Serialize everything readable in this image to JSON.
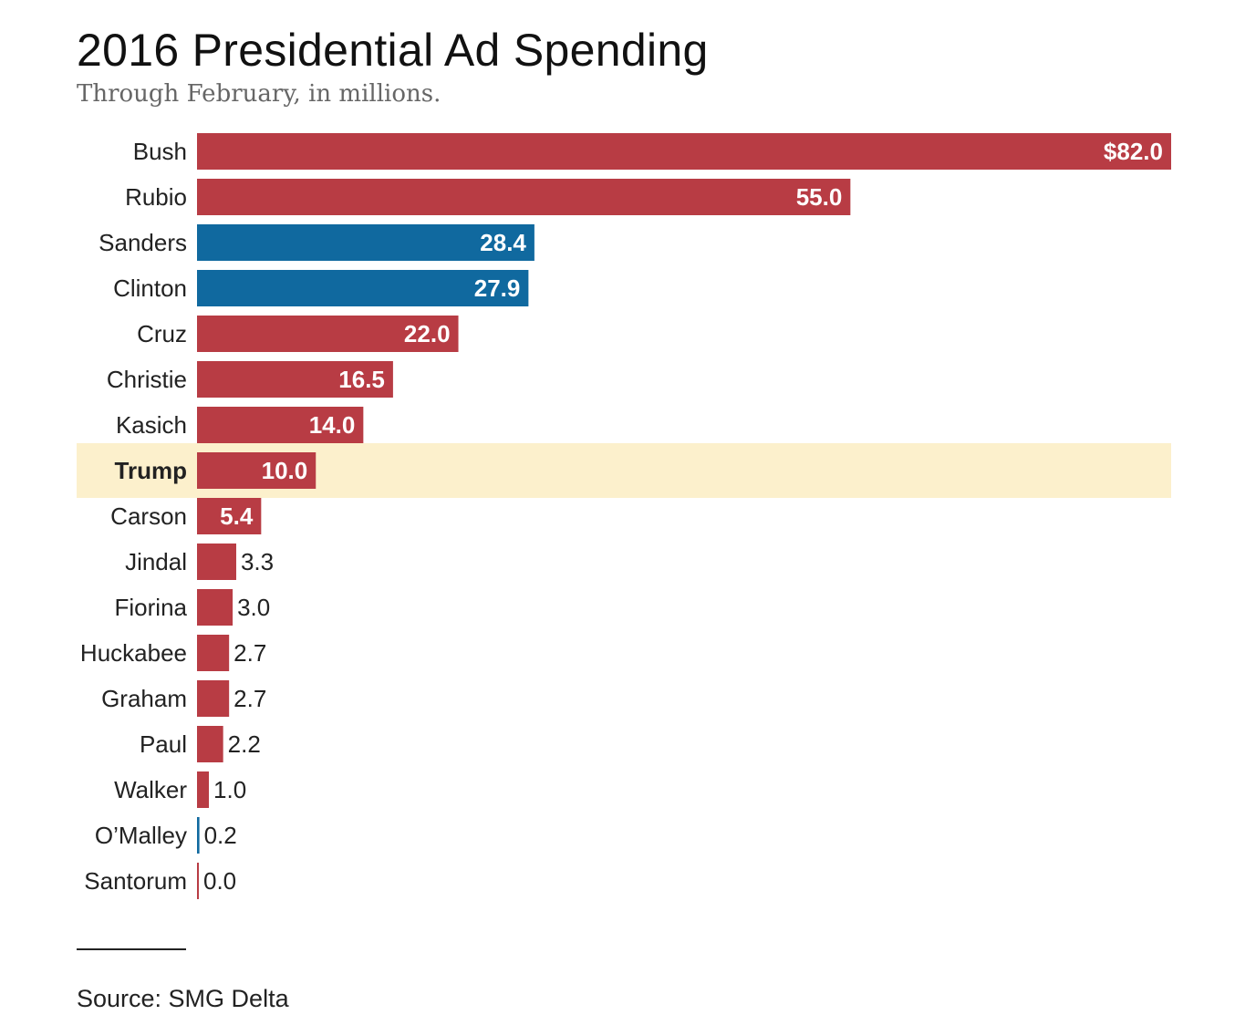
{
  "chart_data": {
    "type": "bar",
    "orientation": "horizontal",
    "title": "2016 Presidential Ad Spending",
    "subtitle": "Through February, in millions.",
    "source": "Source: SMG Delta",
    "value_prefix_first": "$",
    "xlim": [
      0,
      82
    ],
    "grid": false,
    "colors": {
      "republican": "#b83c44",
      "democrat": "#10699f",
      "highlight": "#fcf0cc"
    },
    "highlighted": "Trump",
    "categories": [
      "Bush",
      "Rubio",
      "Sanders",
      "Clinton",
      "Cruz",
      "Christie",
      "Kasich",
      "Trump",
      "Carson",
      "Jindal",
      "Fiorina",
      "Huckabee",
      "Graham",
      "Paul",
      "Walker",
      "O’Malley",
      "Santorum"
    ],
    "values": [
      82.0,
      55.0,
      28.4,
      27.9,
      22.0,
      16.5,
      14.0,
      10.0,
      5.4,
      3.3,
      3.0,
      2.7,
      2.7,
      2.2,
      1.0,
      0.2,
      0.0
    ],
    "value_labels": [
      "$82.0",
      "55.0",
      "28.4",
      "27.9",
      "22.0",
      "16.5",
      "14.0",
      "10.0",
      "5.4",
      "3.3",
      "3.0",
      "2.7",
      "2.7",
      "2.2",
      "1.0",
      "0.2",
      "0.0"
    ],
    "party": [
      "republican",
      "republican",
      "democrat",
      "democrat",
      "republican",
      "republican",
      "republican",
      "republican",
      "republican",
      "republican",
      "republican",
      "republican",
      "republican",
      "republican",
      "republican",
      "democrat",
      "republican"
    ]
  }
}
